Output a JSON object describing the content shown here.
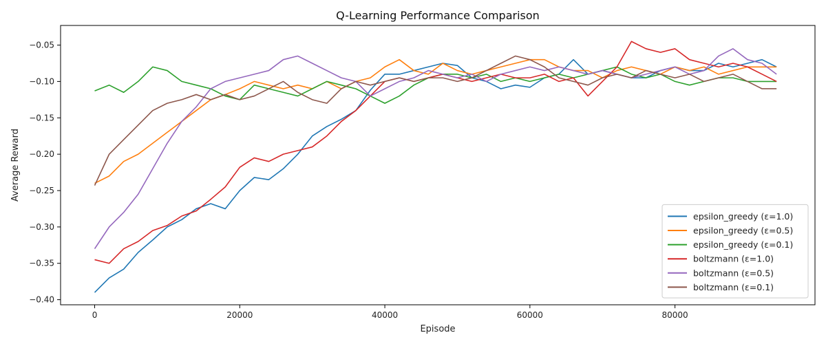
{
  "chart_data": {
    "type": "line",
    "title": "Q-Learning Performance Comparison",
    "xlabel": "Episode",
    "ylabel": "Average Reward",
    "xlim": [
      -4700,
      99300
    ],
    "ylim": [
      -0.407,
      -0.023
    ],
    "xticks": [
      0,
      20000,
      40000,
      60000,
      80000
    ],
    "xtick_labels": [
      "0",
      "20000",
      "40000",
      "60000",
      "80000"
    ],
    "yticks": [
      -0.4,
      -0.35,
      -0.3,
      -0.25,
      -0.2,
      -0.15,
      -0.1,
      -0.05
    ],
    "ytick_labels": [
      "−0.40",
      "−0.35",
      "−0.30",
      "−0.25",
      "−0.20",
      "−0.15",
      "−0.10",
      "−0.05"
    ],
    "grid": false,
    "legend_position": "lower-right",
    "x": [
      0,
      2000,
      4000,
      6000,
      8000,
      10000,
      12000,
      14000,
      16000,
      18000,
      20000,
      22000,
      24000,
      26000,
      28000,
      30000,
      32000,
      34000,
      36000,
      38000,
      40000,
      42000,
      44000,
      46000,
      48000,
      50000,
      52000,
      54000,
      56000,
      58000,
      60000,
      62000,
      64000,
      66000,
      68000,
      70000,
      72000,
      74000,
      76000,
      78000,
      80000,
      82000,
      84000,
      86000,
      88000,
      90000,
      92000,
      94000
    ],
    "series": [
      {
        "name": "epsilon_greedy (ε=1.0)",
        "color": "#1f77b4",
        "values": [
          -0.39,
          -0.37,
          -0.358,
          -0.335,
          -0.318,
          -0.3,
          -0.29,
          -0.275,
          -0.268,
          -0.275,
          -0.25,
          -0.232,
          -0.235,
          -0.22,
          -0.2,
          -0.175,
          -0.162,
          -0.152,
          -0.14,
          -0.112,
          -0.09,
          -0.09,
          -0.085,
          -0.08,
          -0.075,
          -0.078,
          -0.095,
          -0.1,
          -0.11,
          -0.105,
          -0.108,
          -0.095,
          -0.09,
          -0.07,
          -0.09,
          -0.085,
          -0.09,
          -0.095,
          -0.095,
          -0.085,
          -0.08,
          -0.085,
          -0.085,
          -0.075,
          -0.08,
          -0.075,
          -0.07,
          -0.08
        ]
      },
      {
        "name": "epsilon_greedy (ε=0.5)",
        "color": "#ff7f0e",
        "values": [
          -0.24,
          -0.23,
          -0.21,
          -0.2,
          -0.185,
          -0.17,
          -0.155,
          -0.14,
          -0.125,
          -0.118,
          -0.11,
          -0.1,
          -0.105,
          -0.11,
          -0.105,
          -0.11,
          -0.1,
          -0.11,
          -0.1,
          -0.095,
          -0.08,
          -0.07,
          -0.085,
          -0.09,
          -0.075,
          -0.085,
          -0.09,
          -0.085,
          -0.08,
          -0.075,
          -0.07,
          -0.07,
          -0.08,
          -0.085,
          -0.085,
          -0.095,
          -0.085,
          -0.08,
          -0.085,
          -0.09,
          -0.08,
          -0.085,
          -0.08,
          -0.09,
          -0.085,
          -0.08,
          -0.08,
          -0.08
        ]
      },
      {
        "name": "epsilon_greedy (ε=0.1)",
        "color": "#2ca02c",
        "values": [
          -0.113,
          -0.105,
          -0.115,
          -0.1,
          -0.08,
          -0.085,
          -0.1,
          -0.105,
          -0.11,
          -0.12,
          -0.125,
          -0.105,
          -0.11,
          -0.115,
          -0.12,
          -0.11,
          -0.1,
          -0.105,
          -0.11,
          -0.12,
          -0.13,
          -0.12,
          -0.105,
          -0.095,
          -0.09,
          -0.09,
          -0.095,
          -0.09,
          -0.1,
          -0.095,
          -0.1,
          -0.095,
          -0.09,
          -0.095,
          -0.09,
          -0.085,
          -0.08,
          -0.09,
          -0.095,
          -0.09,
          -0.1,
          -0.105,
          -0.1,
          -0.095,
          -0.095,
          -0.1,
          -0.1,
          -0.1
        ]
      },
      {
        "name": "boltzmann (ε=1.0)",
        "color": "#d62728",
        "values": [
          -0.345,
          -0.35,
          -0.33,
          -0.32,
          -0.305,
          -0.298,
          -0.285,
          -0.278,
          -0.262,
          -0.245,
          -0.218,
          -0.205,
          -0.21,
          -0.2,
          -0.195,
          -0.19,
          -0.175,
          -0.155,
          -0.14,
          -0.12,
          -0.1,
          -0.095,
          -0.1,
          -0.095,
          -0.09,
          -0.095,
          -0.1,
          -0.095,
          -0.09,
          -0.095,
          -0.095,
          -0.09,
          -0.1,
          -0.095,
          -0.12,
          -0.1,
          -0.08,
          -0.045,
          -0.055,
          -0.06,
          -0.055,
          -0.07,
          -0.075,
          -0.08,
          -0.075,
          -0.08,
          -0.09,
          -0.1
        ]
      },
      {
        "name": "boltzmann (ε=0.5)",
        "color": "#9467bd",
        "values": [
          -0.33,
          -0.3,
          -0.28,
          -0.255,
          -0.22,
          -0.185,
          -0.155,
          -0.135,
          -0.11,
          -0.1,
          -0.095,
          -0.09,
          -0.085,
          -0.07,
          -0.065,
          -0.075,
          -0.085,
          -0.095,
          -0.1,
          -0.12,
          -0.11,
          -0.1,
          -0.095,
          -0.085,
          -0.09,
          -0.095,
          -0.09,
          -0.1,
          -0.09,
          -0.085,
          -0.08,
          -0.085,
          -0.08,
          -0.085,
          -0.09,
          -0.085,
          -0.09,
          -0.095,
          -0.09,
          -0.085,
          -0.08,
          -0.09,
          -0.085,
          -0.065,
          -0.055,
          -0.07,
          -0.075,
          -0.09
        ]
      },
      {
        "name": "boltzmann (ε=0.1)",
        "color": "#8c564b",
        "values": [
          -0.243,
          -0.2,
          -0.18,
          -0.16,
          -0.14,
          -0.13,
          -0.125,
          -0.118,
          -0.125,
          -0.118,
          -0.125,
          -0.12,
          -0.11,
          -0.1,
          -0.115,
          -0.125,
          -0.13,
          -0.11,
          -0.1,
          -0.105,
          -0.1,
          -0.095,
          -0.1,
          -0.095,
          -0.095,
          -0.1,
          -0.095,
          -0.085,
          -0.075,
          -0.065,
          -0.07,
          -0.08,
          -0.095,
          -0.1,
          -0.105,
          -0.095,
          -0.09,
          -0.095,
          -0.085,
          -0.09,
          -0.095,
          -0.09,
          -0.1,
          -0.095,
          -0.09,
          -0.1,
          -0.11,
          -0.11
        ]
      }
    ]
  }
}
